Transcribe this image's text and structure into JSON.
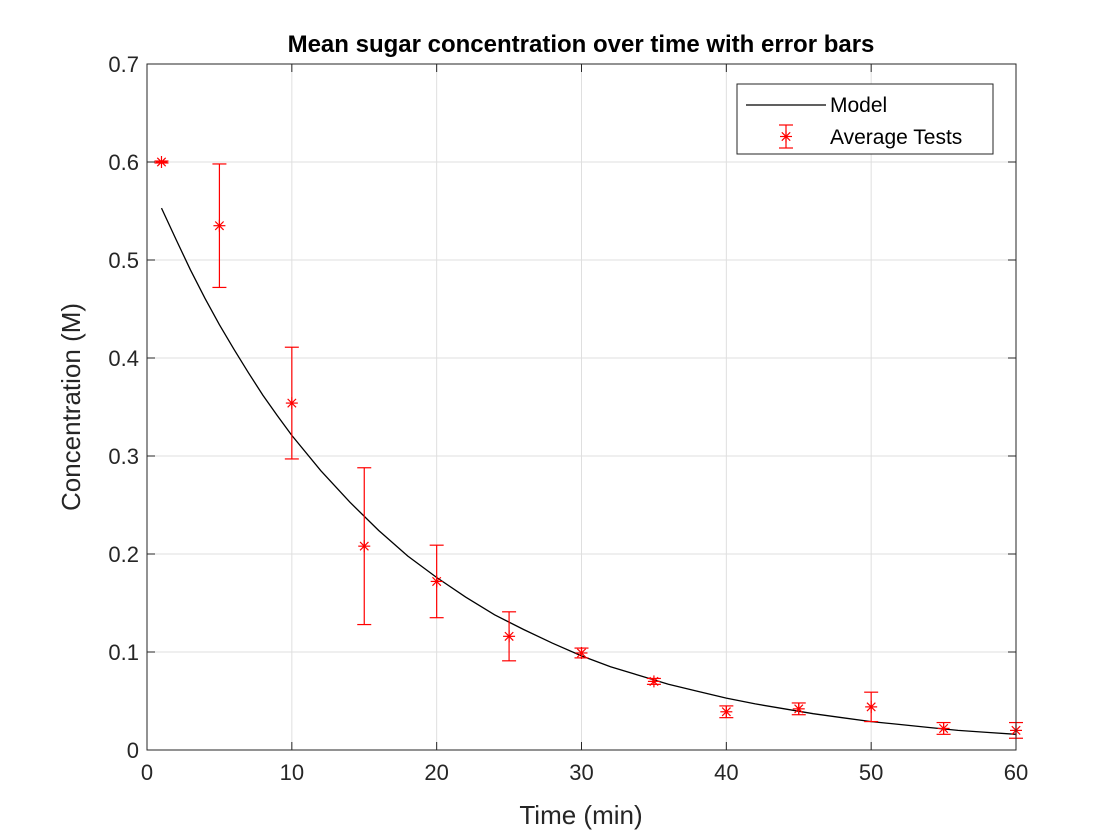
{
  "chart_data": {
    "type": "scatter",
    "title": "Mean sugar concentration over time with error bars",
    "xlabel": "Time (min)",
    "ylabel": "Concentration (M)",
    "xlim": [
      0,
      60
    ],
    "ylim": [
      0,
      0.7
    ],
    "x_ticks": [
      "0",
      "10",
      "20",
      "30",
      "40",
      "50",
      "60"
    ],
    "y_ticks": [
      "0",
      "0.1",
      "0.2",
      "0.3",
      "0.4",
      "0.5",
      "0.6",
      "0.7"
    ],
    "grid": true,
    "legend_position": "top-right",
    "series": [
      {
        "name": "Model",
        "kind": "line",
        "color": "#000000",
        "x": [
          1,
          2,
          3,
          4,
          5,
          6,
          7,
          8,
          9,
          10,
          12,
          14,
          16,
          18,
          20,
          22,
          24,
          26,
          28,
          30,
          32,
          34,
          36,
          38,
          40,
          42,
          44,
          46,
          48,
          50,
          52,
          54,
          56,
          58,
          60
        ],
        "y": [
          0.553,
          0.521,
          0.49,
          0.461,
          0.434,
          0.409,
          0.385,
          0.362,
          0.341,
          0.321,
          0.285,
          0.253,
          0.224,
          0.198,
          0.176,
          0.156,
          0.138,
          0.123,
          0.109,
          0.096,
          0.085,
          0.076,
          0.067,
          0.06,
          0.053,
          0.047,
          0.042,
          0.037,
          0.033,
          0.029,
          0.026,
          0.023,
          0.02,
          0.018,
          0.016
        ]
      },
      {
        "name": "Average Tests",
        "kind": "errorbar",
        "color": "#ff0000",
        "marker": "asterisk",
        "x": [
          1,
          5,
          10,
          15,
          20,
          25,
          30,
          35,
          40,
          45,
          50,
          55,
          60
        ],
        "y": [
          0.6,
          0.535,
          0.354,
          0.208,
          0.172,
          0.116,
          0.099,
          0.07,
          0.039,
          0.042,
          0.044,
          0.022,
          0.02
        ],
        "err": [
          0.001,
          0.063,
          0.057,
          0.08,
          0.037,
          0.025,
          0.005,
          0.003,
          0.006,
          0.006,
          0.015,
          0.006,
          0.008
        ]
      }
    ]
  }
}
